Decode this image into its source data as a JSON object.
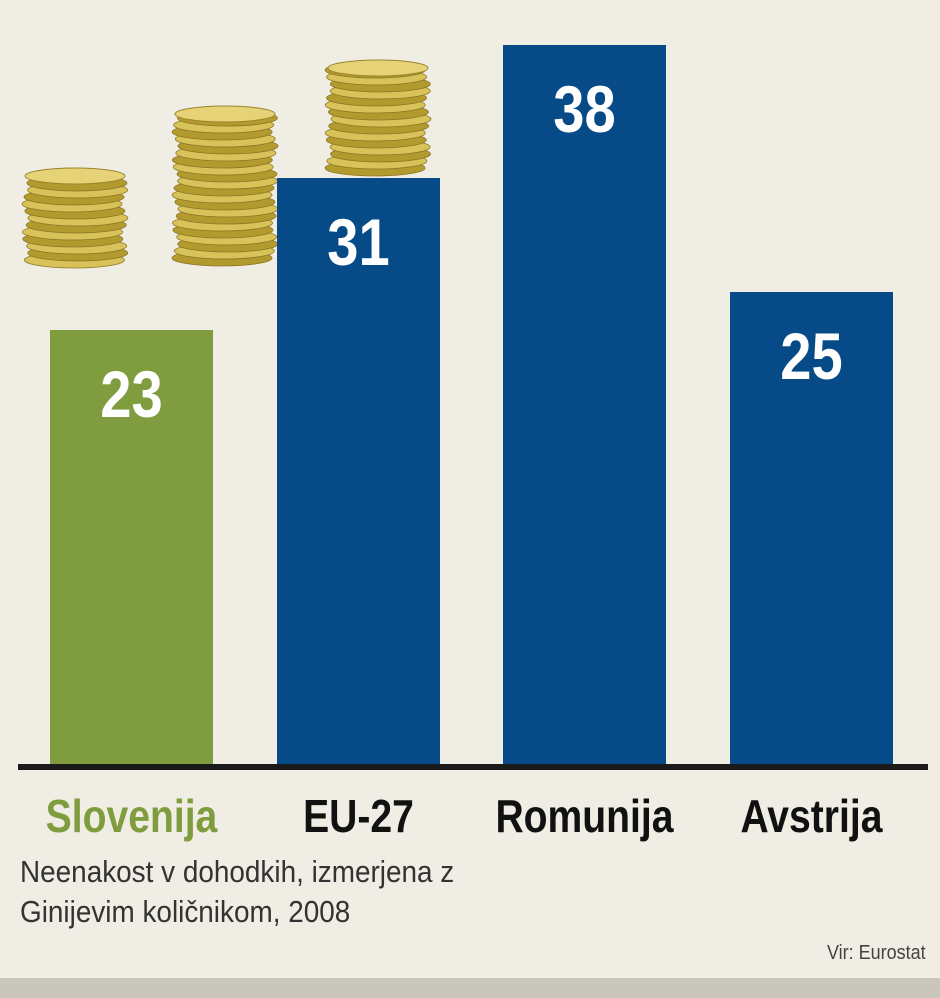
{
  "chart_data": {
    "type": "bar",
    "categories": [
      "Slovenija",
      "EU-27",
      "Romunija",
      "Avstrija"
    ],
    "values": [
      23,
      31,
      38,
      25
    ],
    "data_labels": [
      "23",
      "31",
      "38",
      "25"
    ],
    "colors": [
      "#7f9d3f",
      "#064b87",
      "#064b87",
      "#064b87"
    ],
    "category_label_colors": [
      "#7f9d3f",
      "#111111",
      "#111111",
      "#111111"
    ],
    "caption": "Neenakost v dohodkih, izmerjena z Ginijevim količnikom, 2008",
    "caption_lines": [
      "Neenakost v dohodkih, izmerjena z",
      "Ginijevim količnikom, 2008"
    ],
    "source": "Vir: Eurostat",
    "ylim": [
      0,
      40
    ],
    "grid": false,
    "legend": "none",
    "decorations": [
      "coin-stack-icon",
      "coin-stack-icon",
      "coin-stack-icon"
    ]
  }
}
